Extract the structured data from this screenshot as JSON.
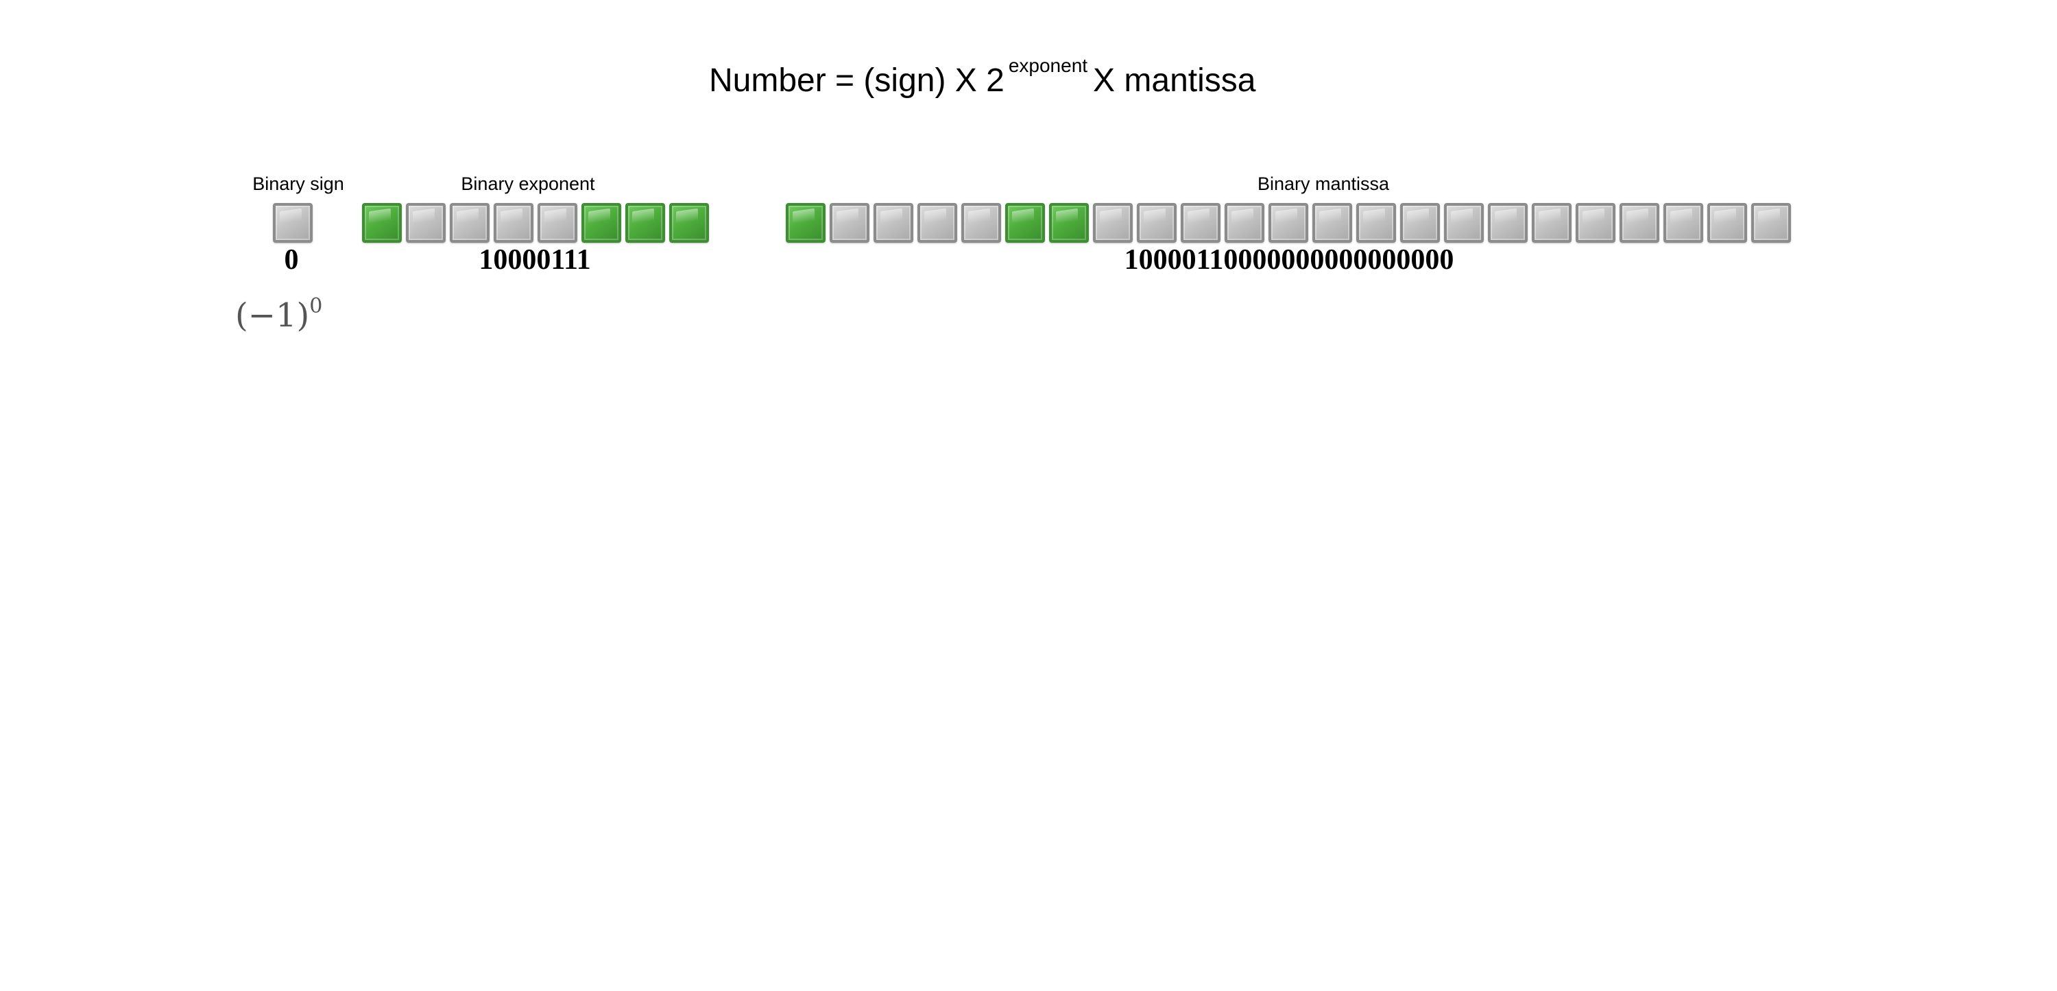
{
  "formula": {
    "prefix": "Number = (sign) X 2",
    "superscript": "exponent",
    "suffix": "X mantissa"
  },
  "labels": {
    "sign": "Binary sign",
    "exponent": "Binary exponent",
    "mantissa": "Binary mantissa"
  },
  "sign": {
    "bits": "0",
    "text": "0"
  },
  "exponent": {
    "bits": "10000111",
    "text": "10000111"
  },
  "mantissa": {
    "bits": "10000110000000000000000",
    "text": "10000110000000000000000"
  },
  "sign_math": {
    "base": "(−1)",
    "power": "0"
  },
  "colors": {
    "bit_on": "#4fae3e",
    "bit_off": "#c4c4c4"
  }
}
